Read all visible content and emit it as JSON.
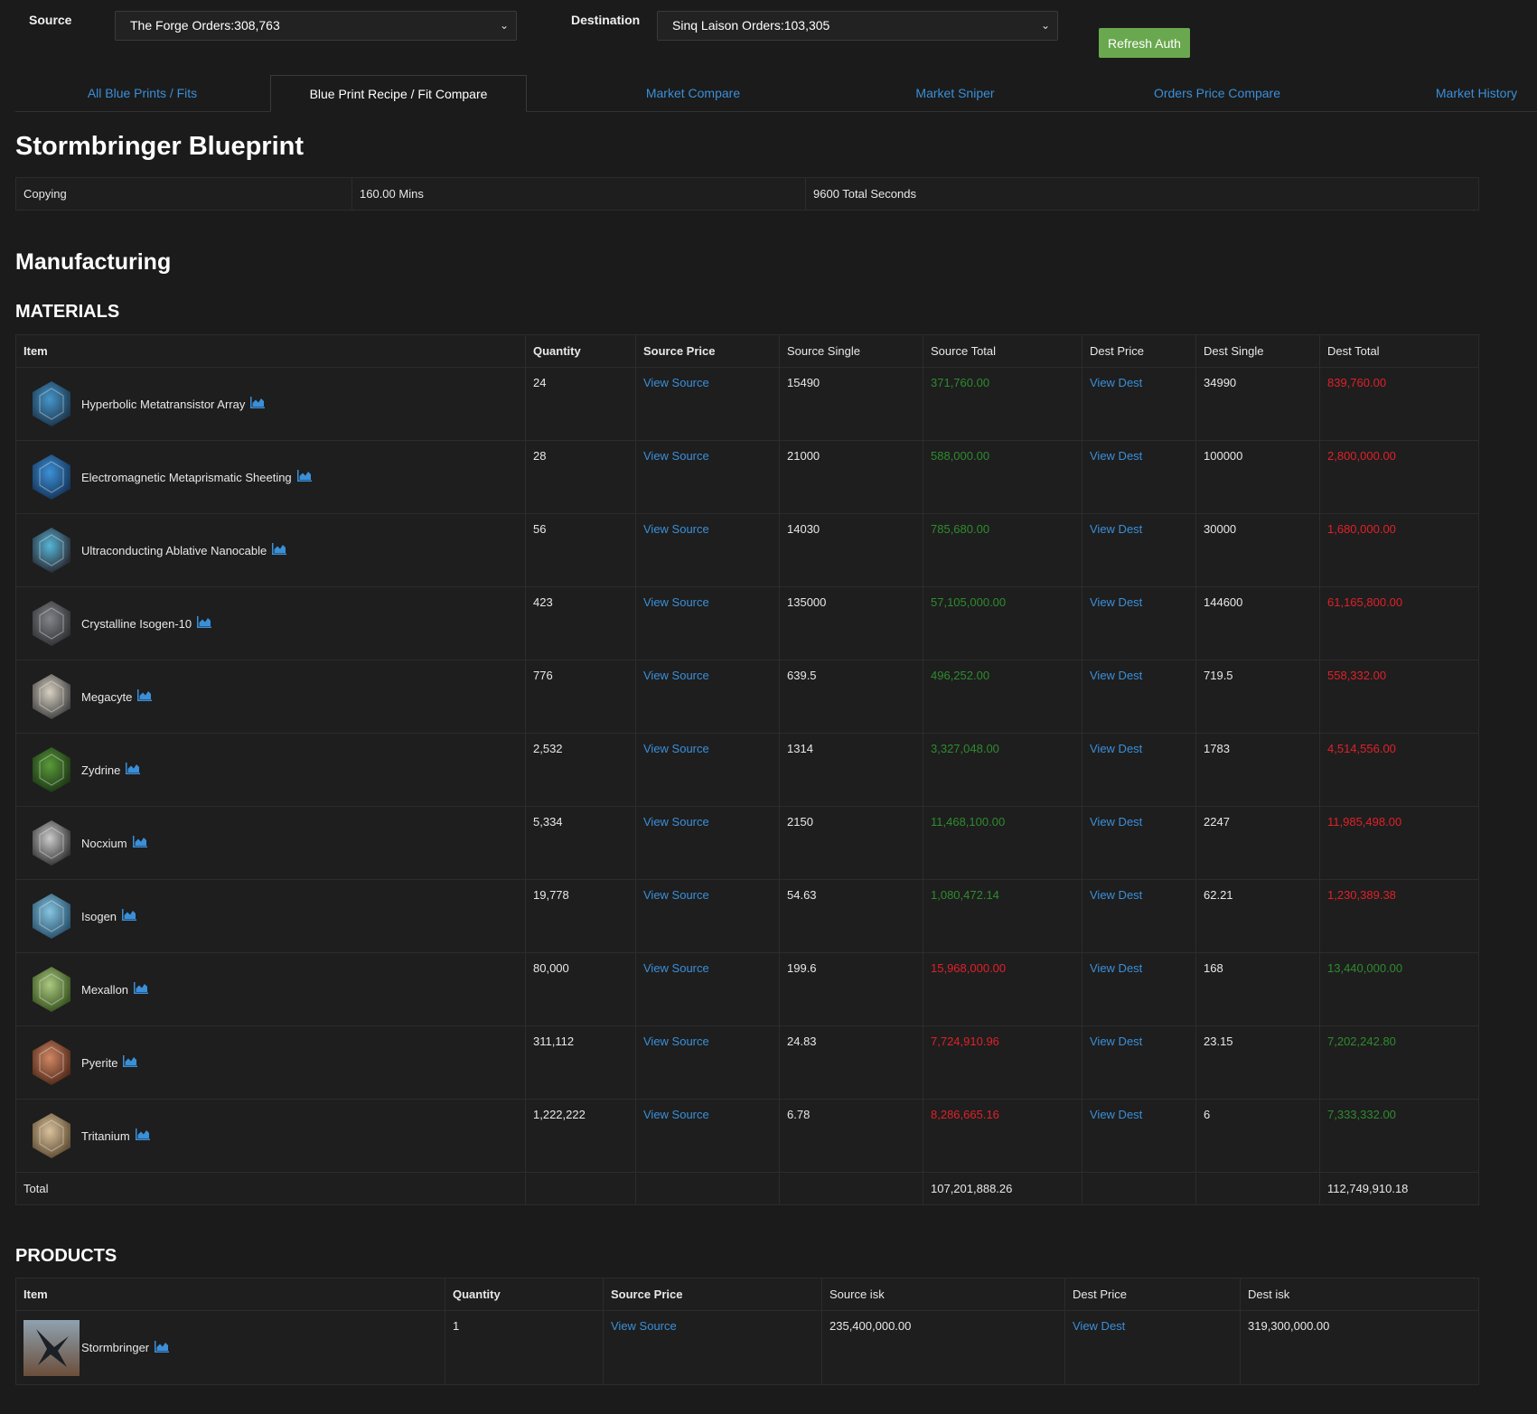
{
  "header": {
    "source_label": "Source",
    "source_value": "The Forge Orders:308,763",
    "destination_label": "Destination",
    "destination_value": "Sinq Laison Orders:103,305",
    "refresh_label": "Refresh Auth"
  },
  "tabs": [
    {
      "label": "All Blue Prints / Fits",
      "active": false
    },
    {
      "label": "Blue Print Recipe / Fit Compare",
      "active": true
    },
    {
      "label": "Market Compare",
      "active": false
    },
    {
      "label": "Market Sniper",
      "active": false
    },
    {
      "label": "Orders Price Compare",
      "active": false
    },
    {
      "label": "Market History",
      "active": false
    }
  ],
  "blueprint": {
    "title": "Stormbringer Blueprint",
    "copying": {
      "label": "Copying",
      "mins": "160.00 Mins",
      "seconds": "9600 Total Seconds"
    }
  },
  "manufacturing": {
    "title": "Manufacturing",
    "materials_title": "MATERIALS",
    "columns": [
      "Item",
      "Quantity",
      "Source Price",
      "Source Single",
      "Source Total",
      "Dest Price",
      "Dest Single",
      "Dest Total"
    ],
    "materials": [
      {
        "name": "Hyperbolic Metatransistor Array",
        "icon": "metatransistor-array-icon",
        "quantity": "24",
        "source_price": "View Source",
        "source_single": "15490",
        "source_total": "371,760.00",
        "source_color": "green",
        "dest_price": "View Dest",
        "dest_single": "34990",
        "dest_total": "839,760.00",
        "dest_color": "red"
      },
      {
        "name": "Electromagnetic Metaprismatic Sheeting",
        "icon": "metaprismatic-sheeting-icon",
        "quantity": "28",
        "source_price": "View Source",
        "source_single": "21000",
        "source_total": "588,000.00",
        "source_color": "green",
        "dest_price": "View Dest",
        "dest_single": "100000",
        "dest_total": "2,800,000.00",
        "dest_color": "red"
      },
      {
        "name": "Ultraconducting Ablative Nanocable",
        "icon": "nanocable-icon",
        "quantity": "56",
        "source_price": "View Source",
        "source_single": "14030",
        "source_total": "785,680.00",
        "source_color": "green",
        "dest_price": "View Dest",
        "dest_single": "30000",
        "dest_total": "1,680,000.00",
        "dest_color": "red"
      },
      {
        "name": "Crystalline Isogen-10",
        "icon": "crystalline-isogen-icon",
        "quantity": "423",
        "source_price": "View Source",
        "source_single": "135000",
        "source_total": "57,105,000.00",
        "source_color": "green",
        "dest_price": "View Dest",
        "dest_single": "144600",
        "dest_total": "61,165,800.00",
        "dest_color": "red"
      },
      {
        "name": "Megacyte",
        "icon": "megacyte-icon",
        "quantity": "776",
        "source_price": "View Source",
        "source_single": "639.5",
        "source_total": "496,252.00",
        "source_color": "green",
        "dest_price": "View Dest",
        "dest_single": "719.5",
        "dest_total": "558,332.00",
        "dest_color": "red"
      },
      {
        "name": "Zydrine",
        "icon": "zydrine-icon",
        "quantity": "2,532",
        "source_price": "View Source",
        "source_single": "1314",
        "source_total": "3,327,048.00",
        "source_color": "green",
        "dest_price": "View Dest",
        "dest_single": "1783",
        "dest_total": "4,514,556.00",
        "dest_color": "red"
      },
      {
        "name": "Nocxium",
        "icon": "nocxium-icon",
        "quantity": "5,334",
        "source_price": "View Source",
        "source_single": "2150",
        "source_total": "11,468,100.00",
        "source_color": "green",
        "dest_price": "View Dest",
        "dest_single": "2247",
        "dest_total": "11,985,498.00",
        "dest_color": "red"
      },
      {
        "name": "Isogen",
        "icon": "isogen-icon",
        "quantity": "19,778",
        "source_price": "View Source",
        "source_single": "54.63",
        "source_total": "1,080,472.14",
        "source_color": "green",
        "dest_price": "View Dest",
        "dest_single": "62.21",
        "dest_total": "1,230,389.38",
        "dest_color": "red"
      },
      {
        "name": "Mexallon",
        "icon": "mexallon-icon",
        "quantity": "80,000",
        "source_price": "View Source",
        "source_single": "199.6",
        "source_total": "15,968,000.00",
        "source_color": "red",
        "dest_price": "View Dest",
        "dest_single": "168",
        "dest_total": "13,440,000.00",
        "dest_color": "green"
      },
      {
        "name": "Pyerite",
        "icon": "pyerite-icon",
        "quantity": "311,112",
        "source_price": "View Source",
        "source_single": "24.83",
        "source_total": "7,724,910.96",
        "source_color": "red",
        "dest_price": "View Dest",
        "dest_single": "23.15",
        "dest_total": "7,202,242.80",
        "dest_color": "green"
      },
      {
        "name": "Tritanium",
        "icon": "tritanium-icon",
        "quantity": "1,222,222",
        "source_price": "View Source",
        "source_single": "6.78",
        "source_total": "8,286,665.16",
        "source_color": "red",
        "dest_price": "View Dest",
        "dest_single": "6",
        "dest_total": "7,333,332.00",
        "dest_color": "green"
      }
    ],
    "total": {
      "label": "Total",
      "source_total": "107,201,888.26",
      "dest_total": "112,749,910.18"
    },
    "products_title": "PRODUCTS",
    "product_columns": [
      "Item",
      "Quantity",
      "Source Price",
      "Source isk",
      "Dest Price",
      "Dest isk"
    ],
    "products": [
      {
        "name": "Stormbringer",
        "icon": "stormbringer-ship-icon",
        "quantity": "1",
        "source_price": "View Source",
        "source_isk": "235,400,000.00",
        "dest_price": "View Dest",
        "dest_isk": "319,300,000.00"
      }
    ]
  },
  "colors": {
    "green": "#2e8b2e",
    "red": "#e0202a",
    "link": "#3a8fd9",
    "refresh_button": "#6aa84f",
    "background": "#1b1b1b"
  }
}
